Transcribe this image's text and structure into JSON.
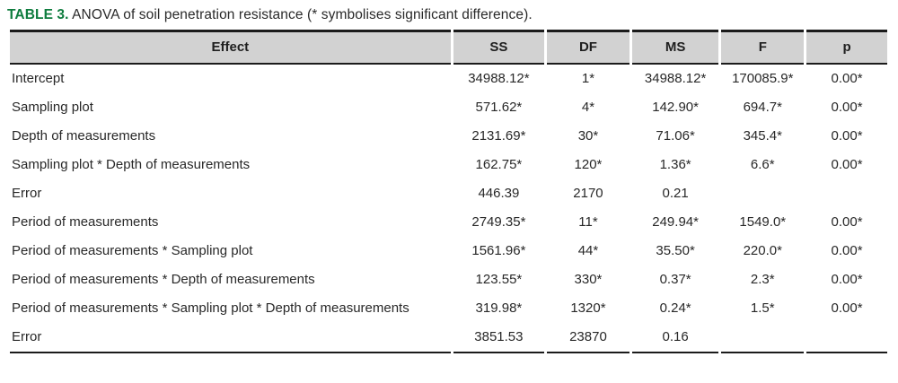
{
  "caption": {
    "label": "TABLE 3.",
    "text": " ANOVA of soil penetration resistance (* symbolises significant difference)."
  },
  "colors": {
    "caption_green": "#0e7c3e",
    "header_bg": "#d2d2d2",
    "rule_black": "#1b1b1b",
    "text": "#282828"
  },
  "table": {
    "columns": [
      "Effect",
      "SS",
      "DF",
      "MS",
      "F",
      "p"
    ],
    "rows": [
      {
        "effect": "Intercept",
        "ss": "34988.12*",
        "df": "1*",
        "ms": "34988.12*",
        "f": "170085.9*",
        "p": "0.00*"
      },
      {
        "effect": "Sampling plot",
        "ss": "571.62*",
        "df": "4*",
        "ms": "142.90*",
        "f": "694.7*",
        "p": "0.00*"
      },
      {
        "effect": "Depth of measurements",
        "ss": "2131.69*",
        "df": "30*",
        "ms": "71.06*",
        "f": "345.4*",
        "p": "0.00*"
      },
      {
        "effect": "Sampling plot * Depth of measurements",
        "ss": "162.75*",
        "df": "120*",
        "ms": "1.36*",
        "f": "6.6*",
        "p": "0.00*"
      },
      {
        "effect": "Error",
        "ss": "446.39",
        "df": "2170",
        "ms": "0.21",
        "f": "",
        "p": ""
      },
      {
        "effect": "Period of measurements",
        "ss": "2749.35*",
        "df": "11*",
        "ms": "249.94*",
        "f": "1549.0*",
        "p": "0.00*"
      },
      {
        "effect": "Period of measurements * Sampling plot",
        "ss": "1561.96*",
        "df": "44*",
        "ms": "35.50*",
        "f": "220.0*",
        "p": "0.00*"
      },
      {
        "effect": "Period of measurements * Depth of measurements",
        "ss": "123.55*",
        "df": "330*",
        "ms": "0.37*",
        "f": "2.3*",
        "p": "0.00*"
      },
      {
        "effect": "Period of measurements * Sampling plot * Depth of measurements",
        "ss": "319.98*",
        "df": "1320*",
        "ms": "0.24*",
        "f": "1.5*",
        "p": "0.00*"
      },
      {
        "effect": "Error",
        "ss": "3851.53",
        "df": "23870",
        "ms": "0.16",
        "f": "",
        "p": ""
      }
    ]
  }
}
